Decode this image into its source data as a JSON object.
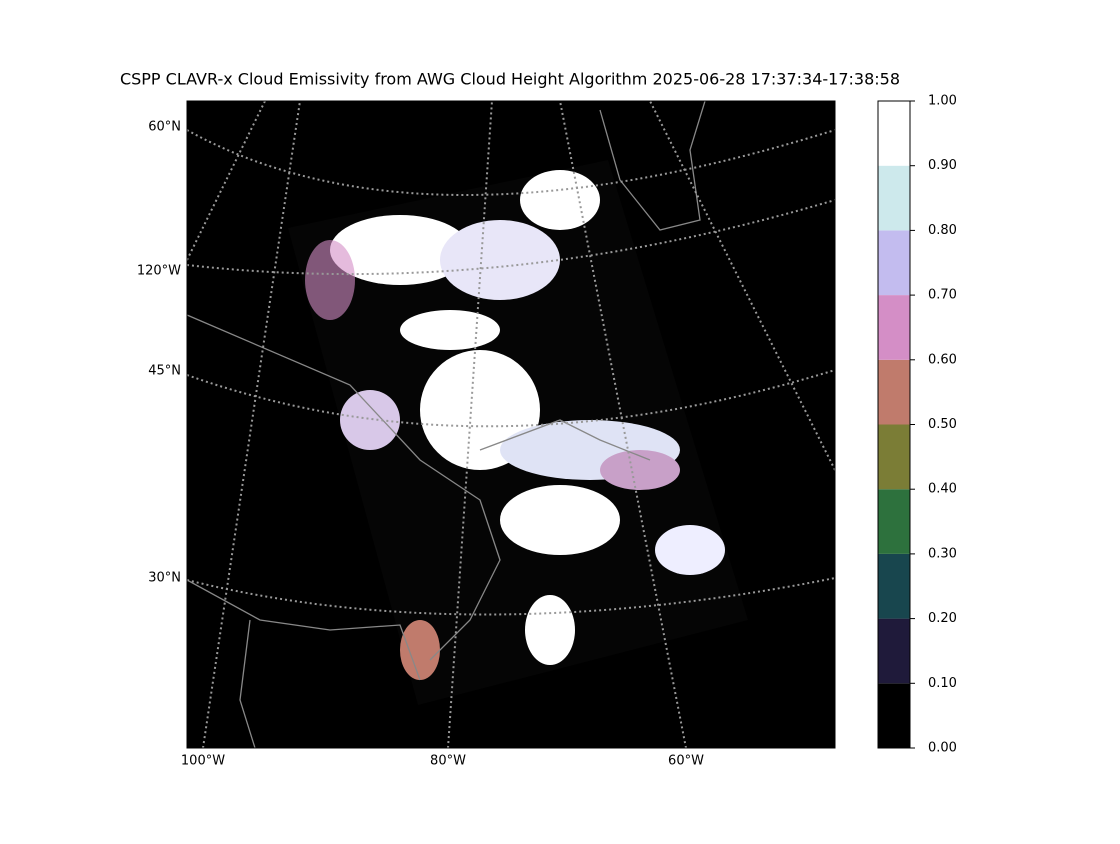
{
  "title": "CSPP CLAVR-x Cloud Emissivity from AWG Cloud Height Algorithm 2025-06-28 17:37:34-17:38:58",
  "map": {
    "left_labels": [
      "60°N",
      "120°W",
      "45°N",
      "30°N"
    ],
    "bottom_labels": [
      "100°W",
      "80°W",
      "60°W"
    ]
  },
  "colorbar": {
    "ticks": [
      {
        "value": 0,
        "label": "0.00"
      },
      {
        "value": 0.1,
        "label": "0.10"
      },
      {
        "value": 0.2,
        "label": "0.20"
      },
      {
        "value": 0.3,
        "label": "0.30"
      },
      {
        "value": 0.4,
        "label": "0.40"
      },
      {
        "value": 0.5,
        "label": "0.50"
      },
      {
        "value": 0.6,
        "label": "0.60"
      },
      {
        "value": 0.7,
        "label": "0.70"
      },
      {
        "value": 0.8,
        "label": "0.80"
      },
      {
        "value": 0.9,
        "label": "0.90"
      },
      {
        "value": 1,
        "label": "1.00"
      }
    ],
    "lim": [
      0,
      1
    ],
    "colors": [
      "#000000",
      "#1f1a3a",
      "#18464e",
      "#2d713d",
      "#7b7d36",
      "#c07b6c",
      "#d48ec6",
      "#c3bcef",
      "#cde9ec",
      "#ffffff"
    ]
  }
}
